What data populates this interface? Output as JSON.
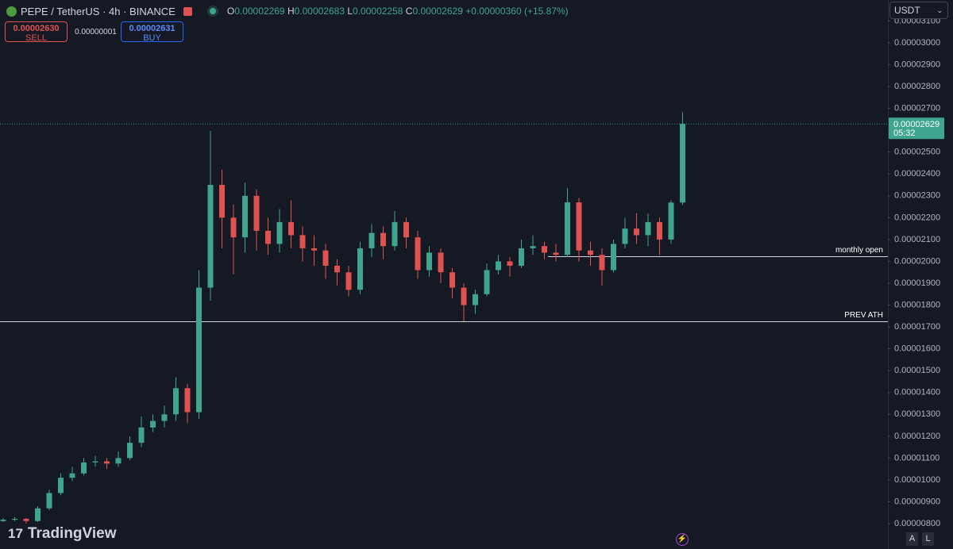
{
  "header": {
    "symbol": "PEPE / TetherUS · 4h · BINANCE",
    "o": "O",
    "h": "H",
    "l": "L",
    "c": "C",
    "change": "+0.00000360 (+15.87%)",
    "sell_price": "0.00002630",
    "sell": "SELL",
    "spread": "0.00000001",
    "buy_price": "0.00002631",
    "buy": "BUY",
    "currency": "USDT",
    "countdown": "05:32",
    "logo": "TradingView",
    "buttons": [
      "A",
      "L"
    ]
  },
  "chart_data": {
    "type": "candlestick",
    "up_color": "#3fa58e",
    "down_color": "#e0524f",
    "ylim": [
      6.84e-06,
      3.196e-05
    ],
    "yticks": [
      {
        "value": 8e-06,
        "label": "0.00000800"
      },
      {
        "value": 9e-06,
        "label": "0.00000900"
      },
      {
        "value": 1e-05,
        "label": "0.00001000"
      },
      {
        "value": 1.1e-05,
        "label": "0.00001100"
      },
      {
        "value": 1.2e-05,
        "label": "0.00001200"
      },
      {
        "value": 1.3e-05,
        "label": "0.00001300"
      },
      {
        "value": 1.4e-05,
        "label": "0.00001400"
      },
      {
        "value": 1.5e-05,
        "label": "0.00001500"
      },
      {
        "value": 1.6e-05,
        "label": "0.00001600"
      },
      {
        "value": 1.7e-05,
        "label": "0.00001700"
      },
      {
        "value": 1.8e-05,
        "label": "0.00001800"
      },
      {
        "value": 1.9e-05,
        "label": "0.00001900"
      },
      {
        "value": 2e-05,
        "label": "0.00002000"
      },
      {
        "value": 2.1e-05,
        "label": "0.00002100"
      },
      {
        "value": 2.2e-05,
        "label": "0.00002200"
      },
      {
        "value": 2.3e-05,
        "label": "0.00002300"
      },
      {
        "value": 2.4e-05,
        "label": "0.00002400"
      },
      {
        "value": 2.5e-05,
        "label": "0.00002500"
      },
      {
        "value": 2.6e-05,
        "label": "0.00002600"
      },
      {
        "value": 2.7e-05,
        "label": "0.00002700"
      },
      {
        "value": 2.8e-05,
        "label": "0.00002800"
      },
      {
        "value": 2.9e-05,
        "label": "0.00002900"
      },
      {
        "value": 3e-05,
        "label": "0.00003000"
      },
      {
        "value": 3.1e-05,
        "label": "0.00003100"
      }
    ],
    "open": [
      8.12e-06,
      8.18e-06,
      8.22e-06,
      8.12e-06,
      8.7e-06,
      9.4e-06,
      1.01e-05,
      1.03e-05,
      1.08e-05,
      1.085e-05,
      1.075e-05,
      1.1e-05,
      1.17e-05,
      1.24e-05,
      1.27e-05,
      1.3e-05,
      1.42e-05,
      1.31e-05,
      1.88e-05,
      2.35e-05,
      2.2e-05,
      2.11e-05,
      2.3e-05,
      2.14e-05,
      2.08e-05,
      2.18e-05,
      2.12e-05,
      2.06e-05,
      2.05e-05,
      1.98e-05,
      1.95e-05,
      1.87e-05,
      2.06e-05,
      2.13e-05,
      2.07e-05,
      2.18e-05,
      2.11e-05,
      1.96e-05,
      2.04e-05,
      1.95e-05,
      1.88e-05,
      1.8e-05,
      1.85e-05,
      1.96e-05,
      2e-05,
      1.98e-05,
      2.06e-05,
      2.07e-05,
      2.04e-05,
      2.03e-05,
      2.27e-05,
      2.05e-05,
      2.03e-05,
      1.96e-05,
      2.08e-05,
      2.15e-05,
      2.12e-05,
      2.18e-05,
      2.1e-05,
      2.269e-05
    ],
    "high": [
      8.25e-06,
      8.3e-06,
      8.26e-06,
      8.8e-06,
      9.55e-06,
      1.03e-05,
      1.06e-05,
      1.1e-05,
      1.11e-05,
      1.1e-05,
      1.13e-05,
      1.2e-05,
      1.29e-05,
      1.3e-05,
      1.34e-05,
      1.47e-05,
      1.44e-05,
      1.96e-05,
      2.597e-05,
      2.42e-05,
      2.26e-05,
      2.36e-05,
      2.33e-05,
      2.2e-05,
      2.24e-05,
      2.28e-05,
      2.16e-05,
      2.12e-05,
      2.08e-05,
      2.01e-05,
      1.98e-05,
      2.09e-05,
      2.17e-05,
      2.16e-05,
      2.23e-05,
      2.2e-05,
      2.14e-05,
      2.07e-05,
      2.06e-05,
      1.97e-05,
      1.9e-05,
      1.87e-05,
      1.99e-05,
      2.03e-05,
      2.02e-05,
      2.1e-05,
      2.12e-05,
      2.09e-05,
      2.08e-05,
      2.335e-05,
      2.29e-05,
      2.09e-05,
      2.06e-05,
      2.1e-05,
      2.2e-05,
      2.22e-05,
      2.22e-05,
      2.2e-05,
      2.28e-05,
      2.683e-05
    ],
    "low": [
      8.08e-06,
      8.12e-06,
      8e-06,
      8.08e-06,
      8.62e-06,
      9.3e-06,
      9.95e-06,
      1.02e-05,
      1.06e-05,
      1.05e-05,
      1.06e-05,
      1.09e-05,
      1.15e-05,
      1.22e-05,
      1.24e-05,
      1.27e-05,
      1.26e-05,
      1.28e-05,
      1.82e-05,
      2.06e-05,
      1.94e-05,
      2.04e-05,
      2.05e-05,
      2.03e-05,
      2.04e-05,
      2.06e-05,
      2e-05,
      1.98e-05,
      1.92e-05,
      1.89e-05,
      1.84e-05,
      1.85e-05,
      2.02e-05,
      2.01e-05,
      2.05e-05,
      2.06e-05,
      1.92e-05,
      1.93e-05,
      1.9e-05,
      1.83e-05,
      1.726e-05,
      1.76e-05,
      1.84e-05,
      1.94e-05,
      1.93e-05,
      1.97e-05,
      2.03e-05,
      2.01e-05,
      2e-05,
      2.02e-05,
      2e-05,
      1.98e-05,
      1.89e-05,
      1.95e-05,
      2.06e-05,
      2.08e-05,
      2.07e-05,
      2.03e-05,
      2.08e-05,
      2.258e-05
    ],
    "close": [
      8.18e-06,
      8.22e-06,
      8.12e-06,
      8.7e-06,
      9.4e-06,
      1.01e-05,
      1.03e-05,
      1.08e-05,
      1.085e-05,
      1.075e-05,
      1.1e-05,
      1.17e-05,
      1.24e-05,
      1.27e-05,
      1.3e-05,
      1.42e-05,
      1.31e-05,
      1.88e-05,
      2.35e-05,
      2.2e-05,
      2.11e-05,
      2.3e-05,
      2.14e-05,
      2.08e-05,
      2.18e-05,
      2.12e-05,
      2.06e-05,
      2.05e-05,
      1.98e-05,
      1.95e-05,
      1.87e-05,
      2.06e-05,
      2.13e-05,
      2.07e-05,
      2.18e-05,
      2.11e-05,
      1.96e-05,
      2.04e-05,
      1.95e-05,
      1.88e-05,
      1.8e-05,
      1.85e-05,
      1.96e-05,
      2e-05,
      1.98e-05,
      2.06e-05,
      2.07e-05,
      2.04e-05,
      2.03e-05,
      2.27e-05,
      2.05e-05,
      2.03e-05,
      1.96e-05,
      2.08e-05,
      2.15e-05,
      2.12e-05,
      2.18e-05,
      2.1e-05,
      2.269e-05,
      2.629e-05
    ],
    "levels": [
      {
        "label": "monthly open",
        "value": 2.023e-05
      },
      {
        "label": "PREV ATH",
        "value": 1.726e-05
      }
    ]
  }
}
